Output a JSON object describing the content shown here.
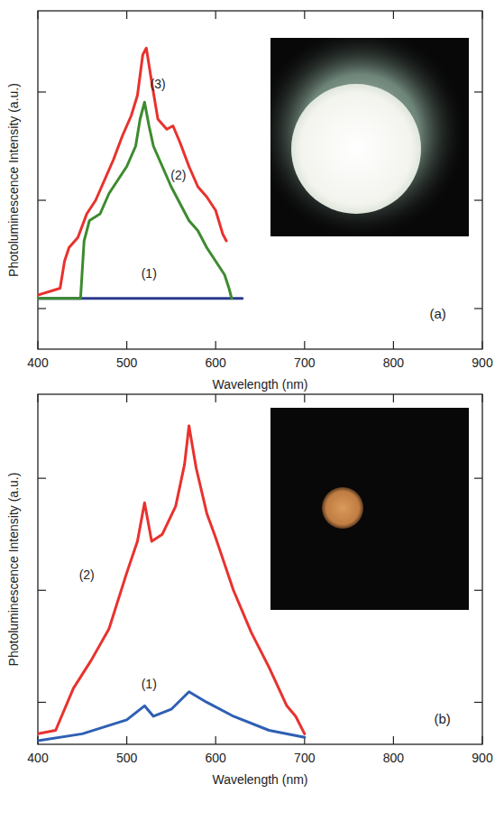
{
  "chart_data": [
    {
      "type": "line",
      "xlabel": "Wavelength (nm)",
      "ylabel": "Photoluminescence Intensity (a.u.)",
      "annotations": [
        "(a)"
      ],
      "xlim": [
        400,
        900
      ],
      "xticks": [
        400,
        500,
        600,
        700,
        800,
        900
      ],
      "ylim": [
        0,
        10
      ],
      "yticks": [
        1.2,
        4.4,
        7.6
      ],
      "tick_labels": "x",
      "grid": false,
      "series": [
        {
          "name": "(1)",
          "color": "#2b3a8c",
          "x": [
            400,
            630
          ],
          "values": [
            1.5,
            1.5
          ]
        },
        {
          "name": "(2)",
          "color": "#3d8b2f",
          "x": [
            400,
            448,
            452,
            458,
            470,
            480,
            490,
            500,
            510,
            515,
            520,
            525,
            530,
            540,
            550,
            560,
            570,
            580,
            590,
            600,
            610,
            615,
            618
          ],
          "values": [
            1.5,
            1.5,
            3.2,
            3.8,
            4.0,
            4.6,
            5.0,
            5.4,
            6.0,
            6.8,
            7.3,
            6.6,
            6.0,
            5.4,
            4.8,
            4.3,
            3.8,
            3.5,
            3.0,
            2.6,
            2.2,
            1.8,
            1.5
          ]
        },
        {
          "name": "(3)",
          "color": "#e8322e",
          "x": [
            400,
            425,
            430,
            435,
            445,
            455,
            465,
            475,
            485,
            495,
            505,
            512,
            518,
            522,
            528,
            535,
            545,
            552,
            560,
            570,
            580,
            590,
            600,
            608,
            612
          ],
          "values": [
            1.6,
            1.8,
            2.6,
            3.0,
            3.3,
            4.0,
            4.4,
            5.0,
            5.6,
            6.3,
            6.9,
            7.5,
            8.7,
            8.9,
            7.9,
            6.8,
            6.5,
            6.6,
            6.1,
            5.4,
            4.8,
            4.5,
            4.1,
            3.4,
            3.2
          ]
        }
      ]
    },
    {
      "type": "line",
      "xlabel": "Wavelength (nm)",
      "ylabel": "Photoluminescence Intensity (a.u.)",
      "annotations": [
        "(b)"
      ],
      "xlim": [
        400,
        900
      ],
      "xticks": [
        400,
        500,
        600,
        700,
        800,
        900
      ],
      "ylim": [
        0,
        10
      ],
      "yticks": [
        1.2,
        4.4,
        7.6
      ],
      "tick_labels": "x",
      "grid": false,
      "series": [
        {
          "name": "(1)",
          "color": "#2f5fb3",
          "x": [
            400,
            450,
            500,
            520,
            530,
            550,
            570,
            590,
            620,
            660,
            700
          ],
          "values": [
            0.1,
            0.3,
            0.7,
            1.1,
            0.8,
            1.0,
            1.5,
            1.2,
            0.8,
            0.4,
            0.2
          ]
        },
        {
          "name": "(2)",
          "color": "#e8322e",
          "x": [
            400,
            420,
            440,
            460,
            480,
            500,
            512,
            520,
            528,
            540,
            555,
            565,
            570,
            578,
            590,
            600,
            620,
            640,
            660,
            680,
            690,
            700
          ],
          "values": [
            0.3,
            0.4,
            1.6,
            2.4,
            3.3,
            4.9,
            5.8,
            6.9,
            5.8,
            6.0,
            6.8,
            8.0,
            9.1,
            7.9,
            6.6,
            5.9,
            4.4,
            3.2,
            2.2,
            1.1,
            0.8,
            0.3
          ]
        }
      ]
    }
  ]
}
